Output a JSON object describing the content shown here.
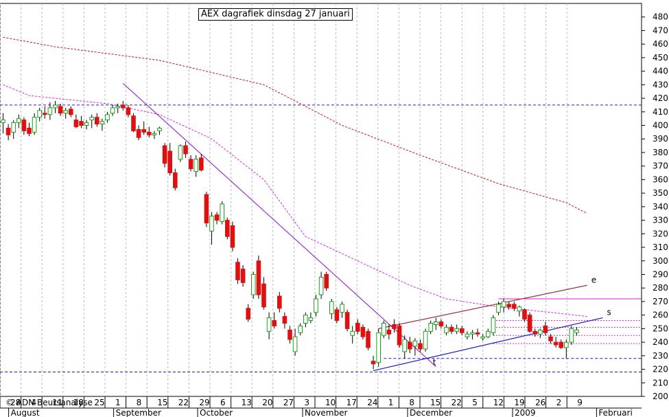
{
  "title": "AEX dagrafiek dinsdag 27 januari",
  "copyright": "© ADN Beursanalyse",
  "colors": {
    "bull": "#18a018",
    "bear": "#e01010",
    "ma_long": "#cc1111",
    "ma_mid": "#dd22dd",
    "trend_down": "#9933cc",
    "trend_up": "#1a1ad0",
    "trend_top": "#993333",
    "support": "#1a1ad0",
    "resistance": "#cc22cc",
    "grid": "#b8b8b8"
  },
  "chart_data": {
    "type": "candlestick",
    "title": "AEX dagrafiek dinsdag 27 januari",
    "ylim": [
      200,
      490
    ],
    "y_ticks": [
      200,
      210,
      220,
      230,
      240,
      250,
      260,
      270,
      280,
      290,
      300,
      310,
      320,
      330,
      340,
      350,
      360,
      370,
      380,
      390,
      400,
      410,
      420,
      430,
      440,
      450,
      460,
      470,
      480
    ],
    "x_ticks": [
      "28",
      "4",
      "11",
      "18",
      "25",
      "1",
      "8",
      "15",
      "22",
      "29",
      "6",
      "13",
      "20",
      "27",
      "3",
      "10",
      "17",
      "24",
      "1",
      "8",
      "15",
      "22",
      "5",
      "12",
      "19",
      "26",
      "2",
      "9"
    ],
    "months": [
      "August",
      "September",
      "October",
      "November",
      "December",
      "2009",
      "Februari"
    ],
    "candles": [
      {
        "o": 402,
        "h": 409,
        "l": 394,
        "c": 404
      },
      {
        "o": 398,
        "h": 401,
        "l": 389,
        "c": 393
      },
      {
        "o": 395,
        "h": 404,
        "l": 390,
        "c": 402
      },
      {
        "o": 402,
        "h": 408,
        "l": 398,
        "c": 405
      },
      {
        "o": 404,
        "h": 406,
        "l": 393,
        "c": 396
      },
      {
        "o": 398,
        "h": 402,
        "l": 392,
        "c": 394
      },
      {
        "o": 395,
        "h": 409,
        "l": 393,
        "c": 406
      },
      {
        "o": 406,
        "h": 413,
        "l": 403,
        "c": 411
      },
      {
        "o": 409,
        "h": 414,
        "l": 405,
        "c": 408
      },
      {
        "o": 408,
        "h": 417,
        "l": 404,
        "c": 413
      },
      {
        "o": 413,
        "h": 418,
        "l": 409,
        "c": 415
      },
      {
        "o": 414,
        "h": 416,
        "l": 407,
        "c": 409
      },
      {
        "o": 409,
        "h": 413,
        "l": 405,
        "c": 411
      },
      {
        "o": 412,
        "h": 414,
        "l": 406,
        "c": 408
      },
      {
        "o": 404,
        "h": 408,
        "l": 398,
        "c": 399
      },
      {
        "o": 403,
        "h": 407,
        "l": 398,
        "c": 400
      },
      {
        "o": 400,
        "h": 404,
        "l": 397,
        "c": 402
      },
      {
        "o": 404,
        "h": 408,
        "l": 398,
        "c": 406
      },
      {
        "o": 406,
        "h": 409,
        "l": 399,
        "c": 401
      },
      {
        "o": 401,
        "h": 405,
        "l": 396,
        "c": 403
      },
      {
        "o": 404,
        "h": 410,
        "l": 402,
        "c": 408
      },
      {
        "o": 409,
        "h": 415,
        "l": 407,
        "c": 413
      },
      {
        "o": 413,
        "h": 416,
        "l": 409,
        "c": 414
      },
      {
        "o": 415,
        "h": 418,
        "l": 411,
        "c": 413
      },
      {
        "o": 413,
        "h": 415,
        "l": 406,
        "c": 408
      },
      {
        "o": 407,
        "h": 409,
        "l": 395,
        "c": 396
      },
      {
        "o": 397,
        "h": 400,
        "l": 389,
        "c": 391
      },
      {
        "o": 397,
        "h": 403,
        "l": 393,
        "c": 395
      },
      {
        "o": 395,
        "h": 399,
        "l": 391,
        "c": 393
      },
      {
        "o": 393,
        "h": 396,
        "l": 390,
        "c": 394
      },
      {
        "o": 396,
        "h": 399,
        "l": 393,
        "c": 398
      },
      {
        "o": 385,
        "h": 387,
        "l": 369,
        "c": 372
      },
      {
        "o": 381,
        "h": 387,
        "l": 363,
        "c": 365
      },
      {
        "o": 365,
        "h": 368,
        "l": 352,
        "c": 354
      },
      {
        "o": 375,
        "h": 386,
        "l": 373,
        "c": 385
      },
      {
        "o": 385,
        "h": 388,
        "l": 376,
        "c": 379
      },
      {
        "o": 375,
        "h": 378,
        "l": 366,
        "c": 368
      },
      {
        "o": 366,
        "h": 378,
        "l": 362,
        "c": 375
      },
      {
        "o": 376,
        "h": 379,
        "l": 366,
        "c": 367
      },
      {
        "o": 349,
        "h": 351,
        "l": 325,
        "c": 328
      },
      {
        "o": 322,
        "h": 336,
        "l": 312,
        "c": 333
      },
      {
        "o": 334,
        "h": 336,
        "l": 327,
        "c": 330
      },
      {
        "o": 329,
        "h": 344,
        "l": 327,
        "c": 342
      },
      {
        "o": 330,
        "h": 332,
        "l": 316,
        "c": 318
      },
      {
        "o": 326,
        "h": 329,
        "l": 307,
        "c": 310
      },
      {
        "o": 299,
        "h": 302,
        "l": 283,
        "c": 286
      },
      {
        "o": 294,
        "h": 297,
        "l": 281,
        "c": 284
      },
      {
        "o": 265,
        "h": 268,
        "l": 255,
        "c": 257
      },
      {
        "o": 275,
        "h": 292,
        "l": 272,
        "c": 290
      },
      {
        "o": 300,
        "h": 304,
        "l": 272,
        "c": 275
      },
      {
        "o": 283,
        "h": 288,
        "l": 264,
        "c": 266
      },
      {
        "o": 248,
        "h": 262,
        "l": 242,
        "c": 258
      },
      {
        "o": 256,
        "h": 262,
        "l": 250,
        "c": 252
      },
      {
        "o": 274,
        "h": 277,
        "l": 262,
        "c": 265
      },
      {
        "o": 259,
        "h": 262,
        "l": 250,
        "c": 254
      },
      {
        "o": 249,
        "h": 252,
        "l": 239,
        "c": 242
      },
      {
        "o": 233,
        "h": 250,
        "l": 230,
        "c": 244
      },
      {
        "o": 247,
        "h": 254,
        "l": 245,
        "c": 252
      },
      {
        "o": 254,
        "h": 262,
        "l": 251,
        "c": 260
      },
      {
        "o": 256,
        "h": 262,
        "l": 254,
        "c": 258
      },
      {
        "o": 262,
        "h": 275,
        "l": 259,
        "c": 272
      },
      {
        "o": 275,
        "h": 292,
        "l": 272,
        "c": 288
      },
      {
        "o": 290,
        "h": 292,
        "l": 278,
        "c": 280
      },
      {
        "o": 261,
        "h": 272,
        "l": 257,
        "c": 270
      },
      {
        "o": 264,
        "h": 266,
        "l": 254,
        "c": 256
      },
      {
        "o": 262,
        "h": 270,
        "l": 258,
        "c": 268
      },
      {
        "o": 262,
        "h": 264,
        "l": 248,
        "c": 250
      },
      {
        "o": 245,
        "h": 252,
        "l": 239,
        "c": 248
      },
      {
        "o": 254,
        "h": 257,
        "l": 246,
        "c": 248
      },
      {
        "o": 251,
        "h": 253,
        "l": 242,
        "c": 244
      },
      {
        "o": 248,
        "h": 250,
        "l": 234,
        "c": 236
      },
      {
        "o": 226,
        "h": 230,
        "l": 220,
        "c": 224
      },
      {
        "o": 225,
        "h": 250,
        "l": 222,
        "c": 247
      },
      {
        "o": 245,
        "h": 256,
        "l": 243,
        "c": 254
      },
      {
        "o": 249,
        "h": 253,
        "l": 242,
        "c": 246
      },
      {
        "o": 253,
        "h": 257,
        "l": 247,
        "c": 250
      },
      {
        "o": 252,
        "h": 254,
        "l": 236,
        "c": 238
      },
      {
        "o": 233,
        "h": 245,
        "l": 228,
        "c": 242
      },
      {
        "o": 240,
        "h": 244,
        "l": 232,
        "c": 235
      },
      {
        "o": 237,
        "h": 243,
        "l": 230,
        "c": 241
      },
      {
        "o": 239,
        "h": 242,
        "l": 233,
        "c": 235
      },
      {
        "o": 235,
        "h": 250,
        "l": 233,
        "c": 248
      },
      {
        "o": 248,
        "h": 256,
        "l": 246,
        "c": 254
      },
      {
        "o": 253,
        "h": 258,
        "l": 249,
        "c": 255
      },
      {
        "o": 255,
        "h": 257,
        "l": 250,
        "c": 252
      },
      {
        "o": 247,
        "h": 253,
        "l": 245,
        "c": 251
      },
      {
        "o": 251,
        "h": 253,
        "l": 246,
        "c": 248
      },
      {
        "o": 248,
        "h": 253,
        "l": 246,
        "c": 250
      },
      {
        "o": 250,
        "h": 252,
        "l": 245,
        "c": 247
      },
      {
        "o": 244,
        "h": 248,
        "l": 242,
        "c": 246
      },
      {
        "o": 246,
        "h": 249,
        "l": 242,
        "c": 247
      },
      {
        "o": 247,
        "h": 250,
        "l": 244,
        "c": 246
      },
      {
        "o": 243,
        "h": 246,
        "l": 241,
        "c": 244
      },
      {
        "o": 244,
        "h": 250,
        "l": 243,
        "c": 248
      },
      {
        "o": 247,
        "h": 260,
        "l": 245,
        "c": 258
      },
      {
        "o": 262,
        "h": 270,
        "l": 260,
        "c": 268
      },
      {
        "o": 266,
        "h": 272,
        "l": 262,
        "c": 270
      },
      {
        "o": 268,
        "h": 270,
        "l": 264,
        "c": 266
      },
      {
        "o": 268,
        "h": 270,
        "l": 263,
        "c": 265
      },
      {
        "o": 263,
        "h": 267,
        "l": 259,
        "c": 266
      },
      {
        "o": 264,
        "h": 265,
        "l": 255,
        "c": 257
      },
      {
        "o": 260,
        "h": 262,
        "l": 247,
        "c": 248
      },
      {
        "o": 248,
        "h": 250,
        "l": 244,
        "c": 246
      },
      {
        "o": 246,
        "h": 250,
        "l": 243,
        "c": 249
      },
      {
        "o": 252,
        "h": 255,
        "l": 245,
        "c": 247
      },
      {
        "o": 244,
        "h": 246,
        "l": 239,
        "c": 241
      },
      {
        "o": 240,
        "h": 244,
        "l": 236,
        "c": 238
      },
      {
        "o": 240,
        "h": 242,
        "l": 235,
        "c": 236
      },
      {
        "o": 236,
        "h": 242,
        "l": 228,
        "c": 240
      },
      {
        "o": 240,
        "h": 252,
        "l": 238,
        "c": 250
      },
      {
        "o": 247,
        "h": 251,
        "l": 245,
        "c": 249
      }
    ],
    "ma_long": [
      [
        0,
        465
      ],
      [
        3,
        463
      ],
      [
        10,
        458
      ],
      [
        30,
        448
      ],
      [
        50,
        430
      ],
      [
        65,
        400
      ],
      [
        80,
        378
      ],
      [
        95,
        357
      ],
      [
        108,
        343
      ],
      [
        112,
        335
      ]
    ],
    "ma_mid": [
      [
        0,
        430
      ],
      [
        5,
        422
      ],
      [
        20,
        416
      ],
      [
        30,
        408
      ],
      [
        40,
        390
      ],
      [
        50,
        360
      ],
      [
        58,
        318
      ],
      [
        68,
        300
      ],
      [
        78,
        282
      ],
      [
        85,
        272
      ],
      [
        95,
        266
      ],
      [
        105,
        262
      ],
      [
        112,
        259
      ]
    ],
    "trendlines": [
      {
        "name": "downtrend",
        "points": [
          [
            23,
            431
          ],
          [
            83,
            222
          ]
        ]
      },
      {
        "name": "channel-top",
        "label": "e",
        "points": [
          [
            72,
            250
          ],
          [
            112,
            282
          ]
        ]
      },
      {
        "name": "channel-bottom",
        "label": "s",
        "points": [
          [
            71,
            219
          ],
          [
            115,
            258
          ]
        ]
      }
    ],
    "hlines": [
      {
        "name": "resistance-415",
        "y": 415
      },
      {
        "name": "support-218",
        "y": 218
      },
      {
        "name": "support-228",
        "y": 228
      },
      {
        "name": "level-272",
        "y": 272
      },
      {
        "name": "level-256",
        "y": 256
      },
      {
        "name": "level-251",
        "y": 251
      },
      {
        "name": "level-245",
        "y": 245
      },
      {
        "name": "level-239",
        "y": 239
      }
    ],
    "annotations": [
      {
        "text": "t",
        "at": [
          82,
          226
        ]
      }
    ]
  }
}
